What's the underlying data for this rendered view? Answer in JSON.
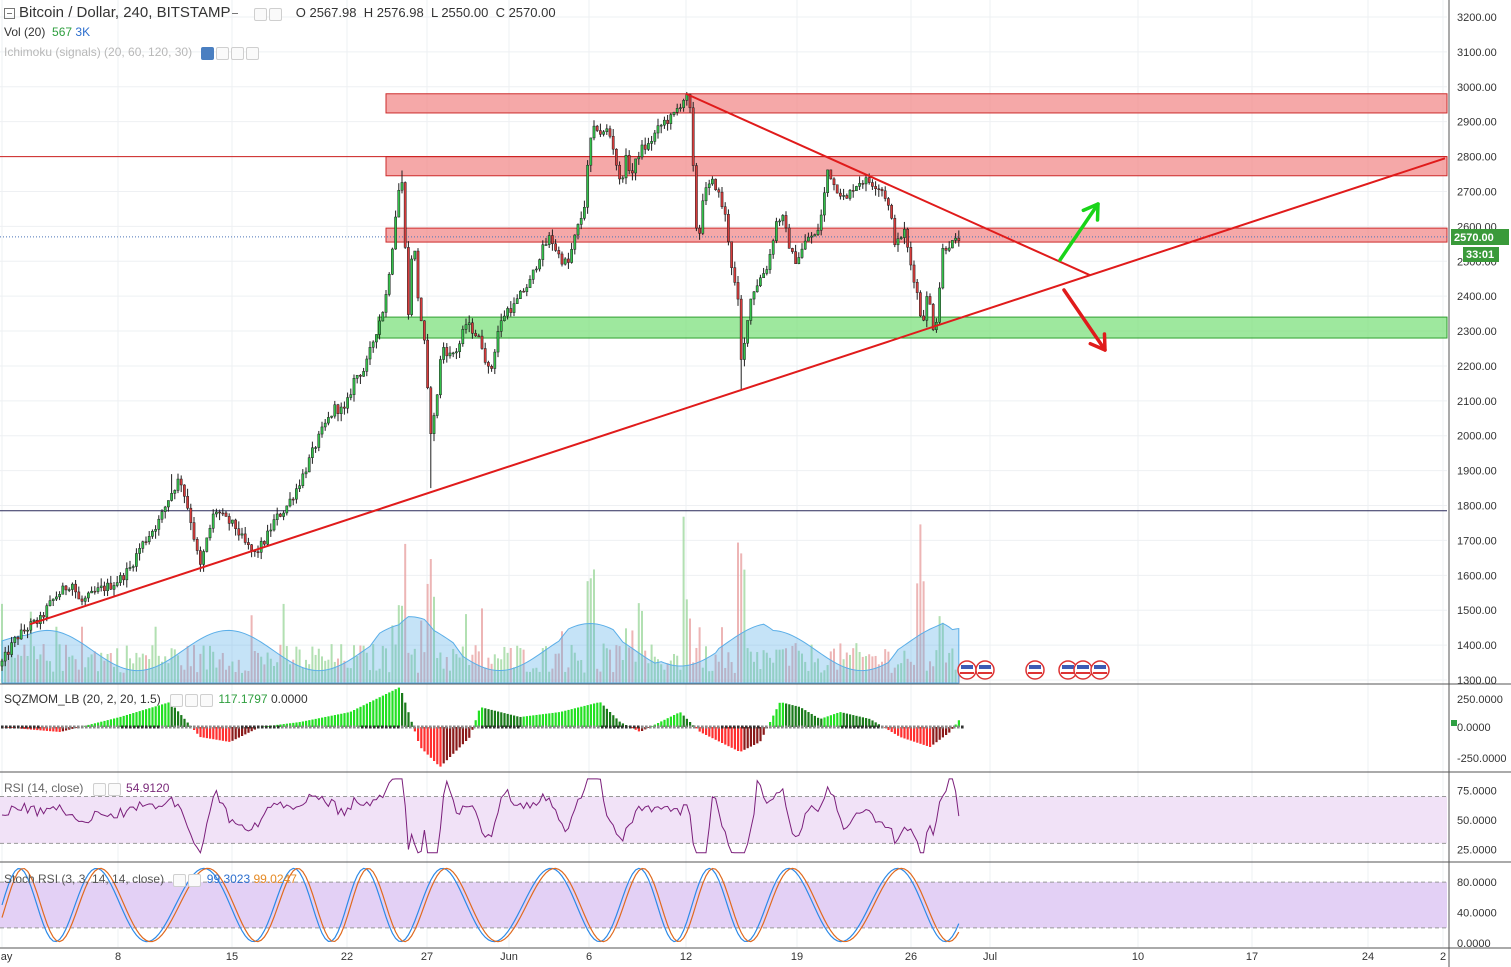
{
  "header": {
    "symbol": "Bitcoin / Dollar, 240, BITSTAMP",
    "ohlc": {
      "o_label": "O",
      "o": "2567.98",
      "h_label": "H",
      "h": "2576.98",
      "l_label": "L",
      "l": "2550.00",
      "c_label": "C",
      "c": "2570.00"
    },
    "vol_label": "Vol (20)",
    "vol_value": "567",
    "vol_ma": "3K",
    "ichimoku_label": "Ichimoku (signals) (20, 60, 120, 30)"
  },
  "price_badge": "2570.00",
  "time_badge": "33:01",
  "colors": {
    "up": "#2ea043",
    "down": "#c62828",
    "resistance": "#f28b8b",
    "support": "#7ee07e",
    "trend": "#e01b1b",
    "arrow_up": "#19d419",
    "arrow_down": "#e01b1b"
  },
  "chart_data": [
    {
      "type": "candlestick",
      "ylim": [
        1300,
        3200
      ],
      "y_ticks": [
        "3200.00",
        "3100.00",
        "3000.00",
        "2900.00",
        "2800.00",
        "2700.00",
        "2600.00",
        "2500.00",
        "2400.00",
        "2300.00",
        "2200.00",
        "2100.00",
        "2000.00",
        "1900.00",
        "1800.00",
        "1700.00",
        "1600.00",
        "1500.00",
        "1400.00",
        "1300.00"
      ],
      "x_ticks": [
        "May",
        "8",
        "15",
        "22",
        "27",
        "Jun",
        "6",
        "12",
        "19",
        "26",
        "Jul",
        "10",
        "17",
        "24",
        "2"
      ],
      "price_path": [
        [
          0,
          1340
        ],
        [
          8,
          1380
        ],
        [
          16,
          1420
        ],
        [
          24,
          1440
        ],
        [
          32,
          1460
        ],
        [
          40,
          1470
        ],
        [
          48,
          1510
        ],
        [
          56,
          1540
        ],
        [
          64,
          1560
        ],
        [
          72,
          1580
        ],
        [
          80,
          1520
        ],
        [
          90,
          1540
        ],
        [
          100,
          1560
        ],
        [
          110,
          1570
        ],
        [
          120,
          1590
        ],
        [
          130,
          1620
        ],
        [
          140,
          1680
        ],
        [
          150,
          1720
        ],
        [
          160,
          1760
        ],
        [
          170,
          1830
        ],
        [
          180,
          1880
        ],
        [
          190,
          1770
        ],
        [
          200,
          1620
        ],
        [
          205,
          1680
        ],
        [
          215,
          1790
        ],
        [
          225,
          1760
        ],
        [
          235,
          1740
        ],
        [
          245,
          1690
        ],
        [
          255,
          1660
        ],
        [
          265,
          1700
        ],
        [
          275,
          1760
        ],
        [
          285,
          1790
        ],
        [
          295,
          1840
        ],
        [
          305,
          1900
        ],
        [
          315,
          1970
        ],
        [
          325,
          2030
        ],
        [
          335,
          2080
        ],
        [
          345,
          2070
        ],
        [
          355,
          2170
        ],
        [
          365,
          2190
        ],
        [
          375,
          2290
        ],
        [
          385,
          2380
        ],
        [
          393,
          2560
        ],
        [
          398,
          2700
        ],
        [
          402,
          2720
        ],
        [
          405,
          2570
        ],
        [
          408,
          2320
        ],
        [
          413,
          2590
        ],
        [
          418,
          2400
        ],
        [
          425,
          2250
        ],
        [
          430,
          2010
        ],
        [
          435,
          2060
        ],
        [
          442,
          2260
        ],
        [
          450,
          2230
        ],
        [
          458,
          2250
        ],
        [
          466,
          2320
        ],
        [
          474,
          2300
        ],
        [
          482,
          2260
        ],
        [
          490,
          2170
        ],
        [
          498,
          2300
        ],
        [
          506,
          2360
        ],
        [
          514,
          2370
        ],
        [
          522,
          2410
        ],
        [
          530,
          2440
        ],
        [
          540,
          2520
        ],
        [
          550,
          2570
        ],
        [
          560,
          2510
        ],
        [
          568,
          2490
        ],
        [
          576,
          2580
        ],
        [
          584,
          2650
        ],
        [
          590,
          2840
        ],
        [
          596,
          2890
        ],
        [
          602,
          2860
        ],
        [
          608,
          2880
        ],
        [
          614,
          2820
        ],
        [
          620,
          2720
        ],
        [
          626,
          2790
        ],
        [
          632,
          2750
        ],
        [
          640,
          2820
        ],
        [
          648,
          2830
        ],
        [
          656,
          2870
        ],
        [
          664,
          2900
        ],
        [
          672,
          2910
        ],
        [
          680,
          2950
        ],
        [
          686,
          2975
        ],
        [
          690,
          2930
        ],
        [
          694,
          2720
        ],
        [
          698,
          2520
        ],
        [
          702,
          2680
        ],
        [
          708,
          2710
        ],
        [
          714,
          2730
        ],
        [
          720,
          2680
        ],
        [
          726,
          2620
        ],
        [
          732,
          2480
        ],
        [
          738,
          2380
        ],
        [
          742,
          2170
        ],
        [
          746,
          2320
        ],
        [
          752,
          2410
        ],
        [
          760,
          2450
        ],
        [
          768,
          2490
        ],
        [
          776,
          2610
        ],
        [
          782,
          2630
        ],
        [
          788,
          2560
        ],
        [
          794,
          2500
        ],
        [
          800,
          2520
        ],
        [
          808,
          2570
        ],
        [
          816,
          2570
        ],
        [
          822,
          2640
        ],
        [
          828,
          2770
        ],
        [
          834,
          2720
        ],
        [
          840,
          2700
        ],
        [
          846,
          2670
        ],
        [
          852,
          2710
        ],
        [
          860,
          2730
        ],
        [
          868,
          2730
        ],
        [
          876,
          2720
        ],
        [
          884,
          2700
        ],
        [
          890,
          2640
        ],
        [
          896,
          2540
        ],
        [
          904,
          2590
        ],
        [
          910,
          2500
        ],
        [
          916,
          2430
        ],
        [
          922,
          2320
        ],
        [
          928,
          2410
        ],
        [
          934,
          2300
        ],
        [
          938,
          2360
        ],
        [
          942,
          2530
        ],
        [
          948,
          2550
        ],
        [
          954,
          2550
        ],
        [
          960,
          2570
        ],
        [
          964,
          2570
        ]
      ],
      "zones": [
        {
          "kind": "resistance",
          "y_top": 2980,
          "y_bottom": 2925
        },
        {
          "kind": "resistance",
          "y_top": 2800,
          "y_bottom": 2745
        },
        {
          "kind": "resistance",
          "y_top": 2595,
          "y_bottom": 2555
        },
        {
          "kind": "support",
          "y_top": 2340,
          "y_bottom": 2280
        }
      ],
      "horizontal_levels": [
        {
          "y": 2800,
          "color": "#cc1f1f"
        },
        {
          "y": 1785,
          "color": "#2a2a5a"
        },
        {
          "y": 2570,
          "color": "#4a74b8",
          "dashed": true
        }
      ],
      "trendlines": [
        {
          "name": "descending",
          "from_bar": 686,
          "from_y": 2980,
          "to_bar": 1090,
          "to_y": 2460
        },
        {
          "name": "ascending",
          "from_bar": 30,
          "from_y": 1460,
          "to_bar": 1445,
          "to_y": 2795
        }
      ]
    },
    {
      "type": "volume",
      "ylim": [
        0,
        6
      ],
      "bars_seed": 7
    },
    {
      "type": "bar",
      "name": "SQZMOM_LB (20, 2, 20, 1.5)",
      "values_label": [
        "117.1797",
        "0.0000"
      ],
      "ylim": [
        -300,
        300
      ],
      "y_ticks": [
        "250.0000",
        "0.0000",
        "-250.0000"
      ]
    },
    {
      "type": "line",
      "name": "RSI (14, close)",
      "value_label": "54.9120",
      "ylim": [
        15,
        90
      ],
      "y_ticks": [
        "75.0000",
        "50.0000",
        "25.0000"
      ],
      "band": [
        30,
        70
      ]
    },
    {
      "type": "line",
      "name": "Stoch RSI (3, 3, 14, 14, close)",
      "value_labels": [
        "99.3023",
        "99.0247"
      ],
      "ylim": [
        -5,
        105
      ],
      "y_ticks": [
        "80.0000",
        "40.0000",
        "0.0000"
      ],
      "band": [
        20,
        80
      ]
    }
  ]
}
